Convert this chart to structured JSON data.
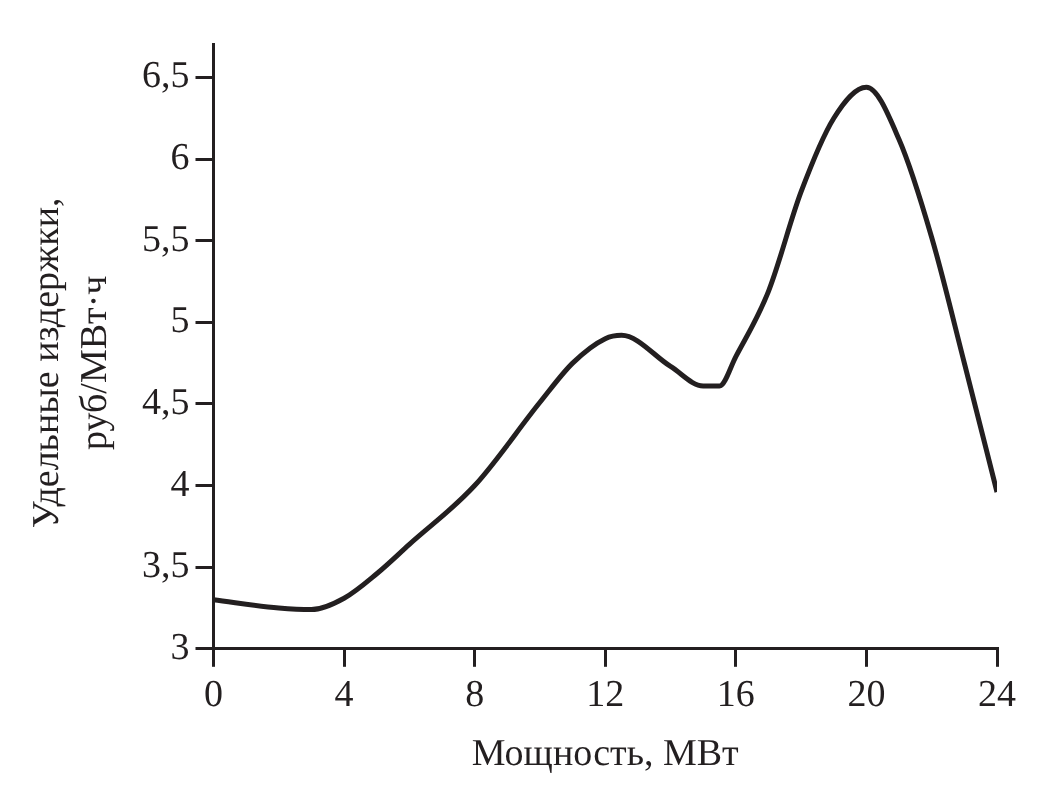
{
  "chart_data": {
    "type": "line",
    "xlabel": "Мощность, МВт",
    "ylabel": "Удельные издержки, руб/МВт·ч",
    "x": [
      0,
      2,
      3,
      4,
      5,
      6,
      8,
      10,
      11,
      12,
      12.5,
      14,
      15,
      15.5,
      16,
      17,
      18,
      19,
      20,
      21,
      22,
      23,
      24
    ],
    "series": [
      {
        "color": "#231f20",
        "values": [
          3.3,
          3.25,
          3.24,
          3.31,
          3.46,
          3.64,
          4.0,
          4.51,
          4.75,
          4.9,
          4.92,
          4.73,
          4.61,
          4.61,
          4.79,
          5.19,
          5.8,
          6.25,
          6.44,
          6.12,
          5.52,
          4.75,
          3.96
        ]
      }
    ],
    "xlim": [
      0,
      24
    ],
    "xticks": [
      0,
      4,
      8,
      12,
      16,
      20,
      24
    ],
    "ylim": [
      3,
      6.7
    ],
    "yticks": [
      3,
      {
        "value": 3.5,
        "label": "3,5"
      },
      4,
      {
        "value": 4.5,
        "label": "4,5"
      },
      5,
      {
        "value": 5.5,
        "label": "5,5"
      },
      6,
      {
        "value": 6.5,
        "label": "6,5"
      }
    ],
    "grid": false,
    "legend": false,
    "marker": "none",
    "line_style": "solid"
  }
}
